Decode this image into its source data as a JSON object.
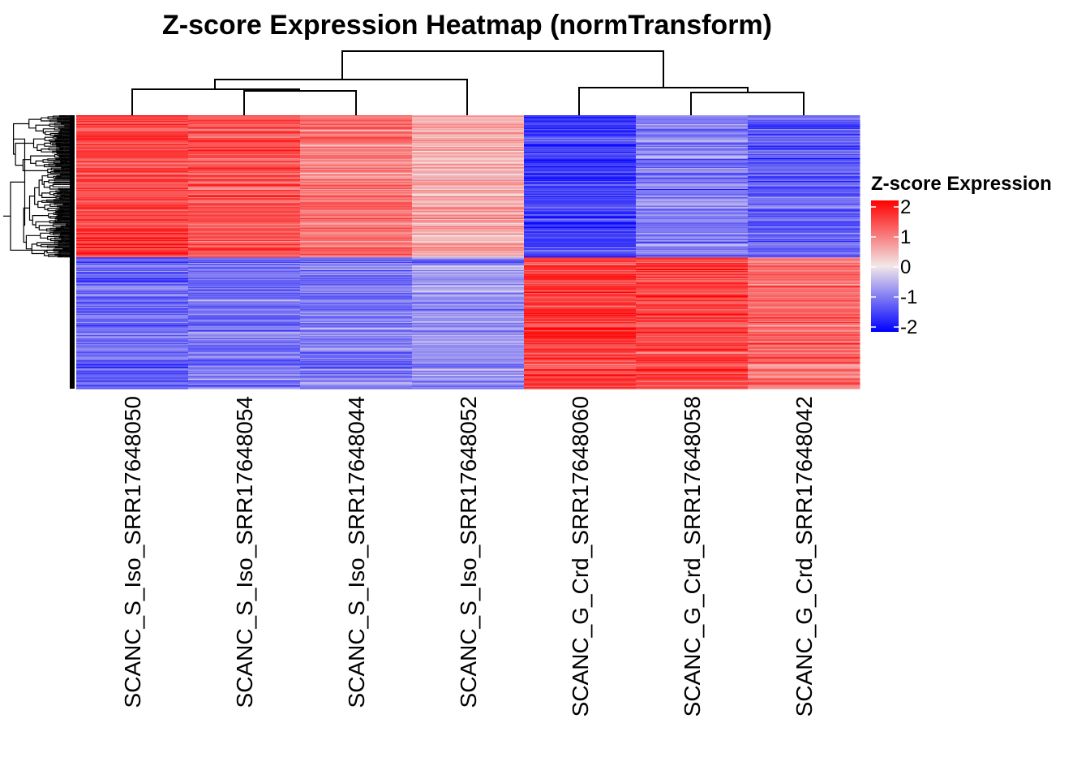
{
  "chart_data": {
    "type": "heatmap",
    "title": "Z-score Expression Heatmap (normTransform)",
    "columns": [
      "SCANC_S_Iso_SRR17648050",
      "SCANC_S_Iso_SRR17648054",
      "SCANC_S_Iso_SRR17648044",
      "SCANC_S_Iso_SRR17648052",
      "SCANC_G_Crd_SRR17648060",
      "SCANC_G_Crd_SRR17648058",
      "SCANC_G_Crd_SRR17648042"
    ],
    "column_dendrogram": "((SCANC_S_Iso_SRR17648050,(SCANC_S_Iso_SRR17648054,SCANC_S_Iso_SRR17648044)),SCANC_S_Iso_SRR17648052),(SCANC_G_Crd_SRR17648060,(SCANC_G_Crd_SRR17648058,SCANC_G_Crd_SRR17648042))",
    "row_clusters": [
      {
        "name": "upper",
        "row_fraction": 0.52,
        "column_means": [
          1.4,
          1.3,
          1.0,
          0.5,
          -1.5,
          -0.9,
          -1.2
        ]
      },
      {
        "name": "lower",
        "row_fraction": 0.48,
        "column_means": [
          -1.1,
          -1.0,
          -0.9,
          -0.7,
          1.5,
          1.4,
          1.1
        ]
      }
    ],
    "n_rows_approx": 300,
    "legend": {
      "title": "Z-score Expression",
      "ticks": [
        "2",
        "1",
        "0",
        "-1",
        "-2"
      ],
      "min": -2,
      "max": 2,
      "colors": {
        "low": "#0000ff",
        "mid": "#f2e8e8",
        "high": "#ff0000"
      },
      "position": "right"
    }
  }
}
